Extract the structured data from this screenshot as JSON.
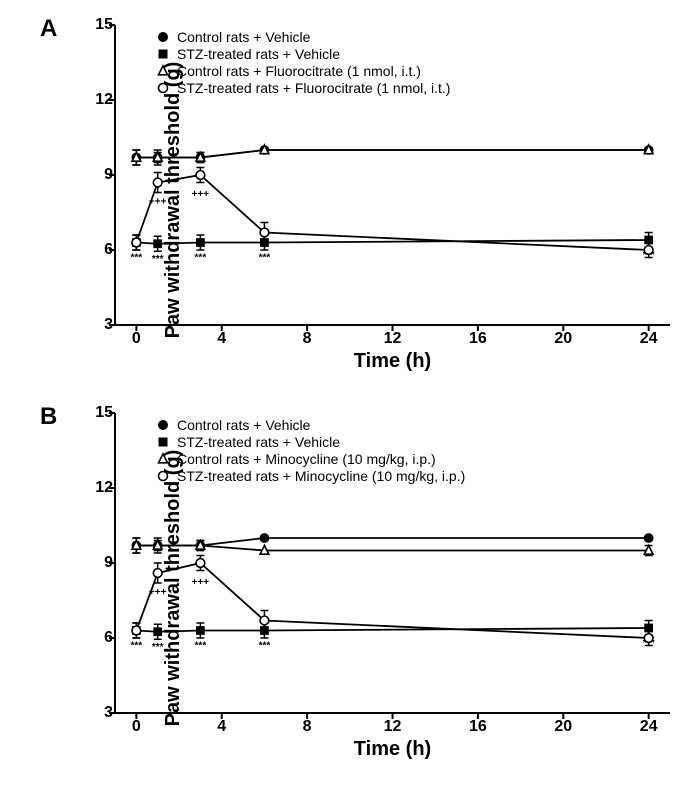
{
  "panels": [
    {
      "label": "A",
      "ylabel": "Paw withdrawal threshold (g)",
      "xlabel": "Time (h)",
      "xlim": [
        -1,
        25
      ],
      "ylim": [
        3,
        15
      ],
      "yticks": [
        3,
        6,
        9,
        12,
        15
      ],
      "xticks": [
        0,
        4,
        8,
        12,
        16,
        20,
        24
      ],
      "tick_fontsize": 16,
      "label_fontsize": 20,
      "axis_color": "#000000",
      "line_color": "#000000",
      "marker_size": 7,
      "line_width": 1.8,
      "tick_len": 6,
      "legend": [
        {
          "marker": "filled-circle",
          "label": "Control rats + Vehicle"
        },
        {
          "marker": "filled-square",
          "label": "STZ-treated rats  + Vehicle"
        },
        {
          "marker": "open-triangle",
          "label": "Control rats + Fluorocitrate (1 nmol, i.t.)"
        },
        {
          "marker": "open-circle",
          "label": "STZ-treated rats + Fluorocitrate (1 nmol, i.t.)"
        }
      ],
      "series": [
        {
          "marker": "filled-circle",
          "x": [
            0,
            1,
            3,
            6,
            24
          ],
          "y": [
            9.7,
            9.7,
            9.7,
            10.0,
            10.0
          ],
          "err": [
            0.3,
            0.3,
            0.2,
            0,
            0
          ]
        },
        {
          "marker": "filled-square",
          "x": [
            0,
            1,
            3,
            6,
            24
          ],
          "y": [
            6.3,
            6.25,
            6.3,
            6.3,
            6.4
          ],
          "err": [
            0.3,
            0.3,
            0.3,
            0.3,
            0.3
          ],
          "sig_below": [
            "***",
            "***",
            "***",
            "***",
            "***"
          ]
        },
        {
          "marker": "open-triangle",
          "x": [
            0,
            1,
            3,
            6,
            24
          ],
          "y": [
            9.7,
            9.7,
            9.7,
            10.0,
            10.0
          ],
          "err": [
            0.3,
            0.2,
            0.2,
            0,
            0
          ]
        },
        {
          "marker": "open-circle",
          "x": [
            0,
            1,
            3,
            6,
            24
          ],
          "y": [
            6.3,
            8.7,
            9.0,
            6.7,
            6.0
          ],
          "err": [
            0.3,
            0.4,
            0.3,
            0.4,
            0.3
          ],
          "sig_below": [
            "",
            "+++",
            "+++",
            "",
            ""
          ]
        }
      ]
    },
    {
      "label": "B",
      "ylabel": "Paw withdrawal threshold (g)",
      "xlabel": "Time (h)",
      "xlim": [
        -1,
        25
      ],
      "ylim": [
        3,
        15
      ],
      "yticks": [
        3,
        6,
        9,
        12,
        15
      ],
      "xticks": [
        0,
        4,
        8,
        12,
        16,
        20,
        24
      ],
      "tick_fontsize": 16,
      "label_fontsize": 20,
      "axis_color": "#000000",
      "line_color": "#000000",
      "marker_size": 7,
      "line_width": 1.8,
      "tick_len": 6,
      "legend": [
        {
          "marker": "filled-circle",
          "label": "Control rats + Vehicle"
        },
        {
          "marker": "filled-square",
          "label": "STZ-treated rats  + Vehicle"
        },
        {
          "marker": "open-triangle",
          "label": "Control rats + Minocycline (10 mg/kg, i.p.)"
        },
        {
          "marker": "open-circle",
          "label": "STZ-treated rats + Minocycline (10 mg/kg, i.p.)"
        }
      ],
      "series": [
        {
          "marker": "filled-circle",
          "x": [
            0,
            1,
            3,
            6,
            24
          ],
          "y": [
            9.7,
            9.7,
            9.7,
            10.0,
            10.0
          ],
          "err": [
            0.3,
            0.3,
            0.2,
            0,
            0
          ]
        },
        {
          "marker": "filled-square",
          "x": [
            0,
            1,
            3,
            6,
            24
          ],
          "y": [
            6.3,
            6.25,
            6.3,
            6.3,
            6.4
          ],
          "err": [
            0.3,
            0.3,
            0.3,
            0.3,
            0.3
          ],
          "sig_below": [
            "***",
            "***",
            "***",
            "***",
            "***"
          ]
        },
        {
          "marker": "open-triangle",
          "x": [
            0,
            1,
            3,
            6,
            24
          ],
          "y": [
            9.7,
            9.7,
            9.7,
            9.5,
            9.5
          ],
          "err": [
            0.3,
            0.2,
            0.2,
            0,
            0.2
          ]
        },
        {
          "marker": "open-circle",
          "x": [
            0,
            1,
            3,
            6,
            24
          ],
          "y": [
            6.3,
            8.6,
            9.0,
            6.7,
            6.0
          ],
          "err": [
            0.3,
            0.4,
            0.3,
            0.4,
            0.3
          ],
          "sig_below": [
            "",
            "+++",
            "+++",
            "",
            ""
          ]
        }
      ]
    }
  ]
}
